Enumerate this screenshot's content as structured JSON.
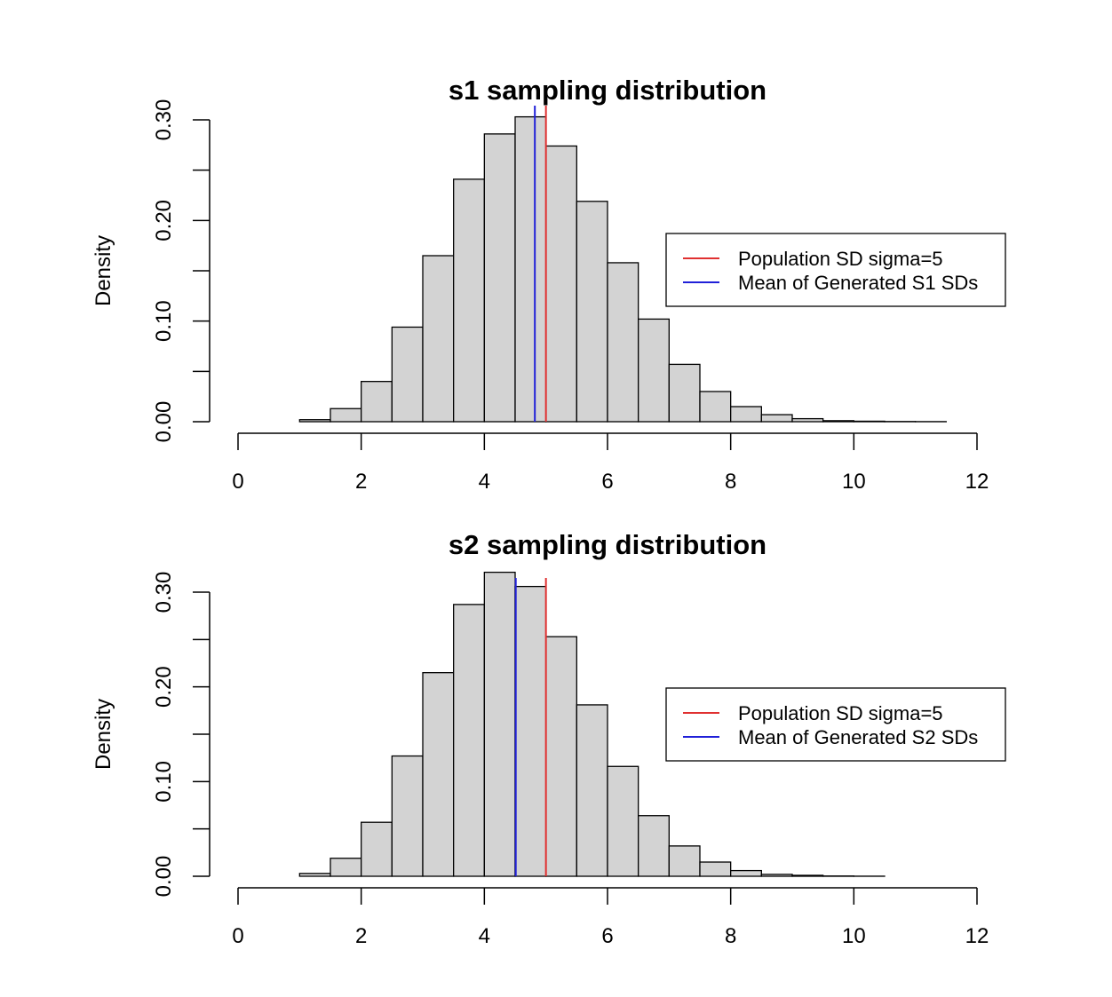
{
  "chart_data": [
    {
      "type": "bar",
      "title": "s1 sampling distribution",
      "xlabel": "",
      "ylabel": "Density",
      "xlim": [
        0,
        12
      ],
      "ylim": [
        0,
        0.3
      ],
      "x_ticks": [
        "0",
        "2",
        "4",
        "6",
        "8",
        "10",
        "12"
      ],
      "y_ticks": [
        "0.00",
        "0.10",
        "0.20",
        "0.30"
      ],
      "bin_width": 0.5,
      "bin_starts": [
        0.5,
        1.0,
        1.5,
        2.0,
        2.5,
        3.0,
        3.5,
        4.0,
        4.5,
        5.0,
        5.5,
        6.0,
        6.5,
        7.0,
        7.5,
        8.0,
        8.5,
        9.0,
        9.5,
        10.0,
        10.5,
        11.0
      ],
      "values": [
        0.0,
        0.002,
        0.013,
        0.04,
        0.094,
        0.165,
        0.241,
        0.286,
        0.303,
        0.274,
        0.219,
        0.158,
        0.102,
        0.057,
        0.03,
        0.015,
        0.007,
        0.003,
        0.001,
        0.0005,
        0.0002,
        0.0001
      ],
      "bar_color": "#d3d3d3",
      "vlines": [
        {
          "label": "Population SD sigma=5",
          "x": 5.0,
          "color": "#e03030"
        },
        {
          "label": "Mean of Generated S1 SDs",
          "x": 4.82,
          "color": "#2020d8"
        }
      ],
      "legend_position": "right"
    },
    {
      "type": "bar",
      "title": "s2 sampling distribution",
      "xlabel": "",
      "ylabel": "Density",
      "xlim": [
        0,
        12
      ],
      "ylim": [
        0,
        0.3
      ],
      "x_ticks": [
        "0",
        "2",
        "4",
        "6",
        "8",
        "10",
        "12"
      ],
      "y_ticks": [
        "0.00",
        "0.10",
        "0.20",
        "0.30"
      ],
      "bin_width": 0.5,
      "bin_starts": [
        0.5,
        1.0,
        1.5,
        2.0,
        2.5,
        3.0,
        3.5,
        4.0,
        4.5,
        5.0,
        5.5,
        6.0,
        6.5,
        7.0,
        7.5,
        8.0,
        8.5,
        9.0,
        9.5,
        10.0
      ],
      "values": [
        0.0,
        0.003,
        0.019,
        0.057,
        0.127,
        0.215,
        0.287,
        0.321,
        0.306,
        0.253,
        0.181,
        0.116,
        0.064,
        0.032,
        0.015,
        0.006,
        0.002,
        0.001,
        0.0003,
        0.0001
      ],
      "bar_color": "#d3d3d3",
      "vlines": [
        {
          "label": "Population SD sigma=5",
          "x": 5.0,
          "color": "#e03030"
        },
        {
          "label": "Mean of Generated S2 SDs",
          "x": 4.51,
          "color": "#2020d8"
        }
      ],
      "legend_position": "right"
    }
  ]
}
